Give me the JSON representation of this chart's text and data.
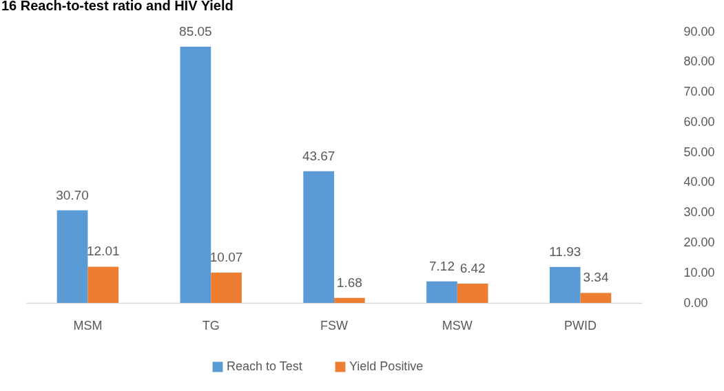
{
  "chart_data": {
    "type": "bar",
    "title": "16 Reach-to-test ratio and HIV Yield",
    "categories": [
      "MSM",
      "TG",
      "FSW",
      "MSW",
      "PWID"
    ],
    "series": [
      {
        "name": "Reach to Test",
        "color": "#5b9bd5",
        "values": [
          30.7,
          85.05,
          43.67,
          7.12,
          11.93
        ],
        "value_labels": [
          "30.70",
          "85.05",
          "43.67",
          "7.12",
          "11.93"
        ]
      },
      {
        "name": "Yield Positive",
        "color": "#ed7d31",
        "values": [
          12.01,
          10.07,
          1.68,
          6.42,
          3.34
        ],
        "value_labels": [
          "12.01",
          "10.07",
          "1.68",
          "6.42",
          "3.34"
        ]
      }
    ],
    "ylim": [
      0,
      90
    ],
    "yticks": [
      {
        "value": 0,
        "label": "0.00"
      },
      {
        "value": 10,
        "label": "10.00"
      },
      {
        "value": 20,
        "label": "20.00"
      },
      {
        "value": 30,
        "label": "30.00"
      },
      {
        "value": 40,
        "label": "40.00"
      },
      {
        "value": 50,
        "label": "50.00"
      },
      {
        "value": 60,
        "label": "60.00"
      },
      {
        "value": 70,
        "label": "70.00"
      },
      {
        "value": 80,
        "label": "80.00"
      },
      {
        "value": 90,
        "label": "90.00"
      }
    ],
    "grid": false,
    "legend": "bottom"
  }
}
